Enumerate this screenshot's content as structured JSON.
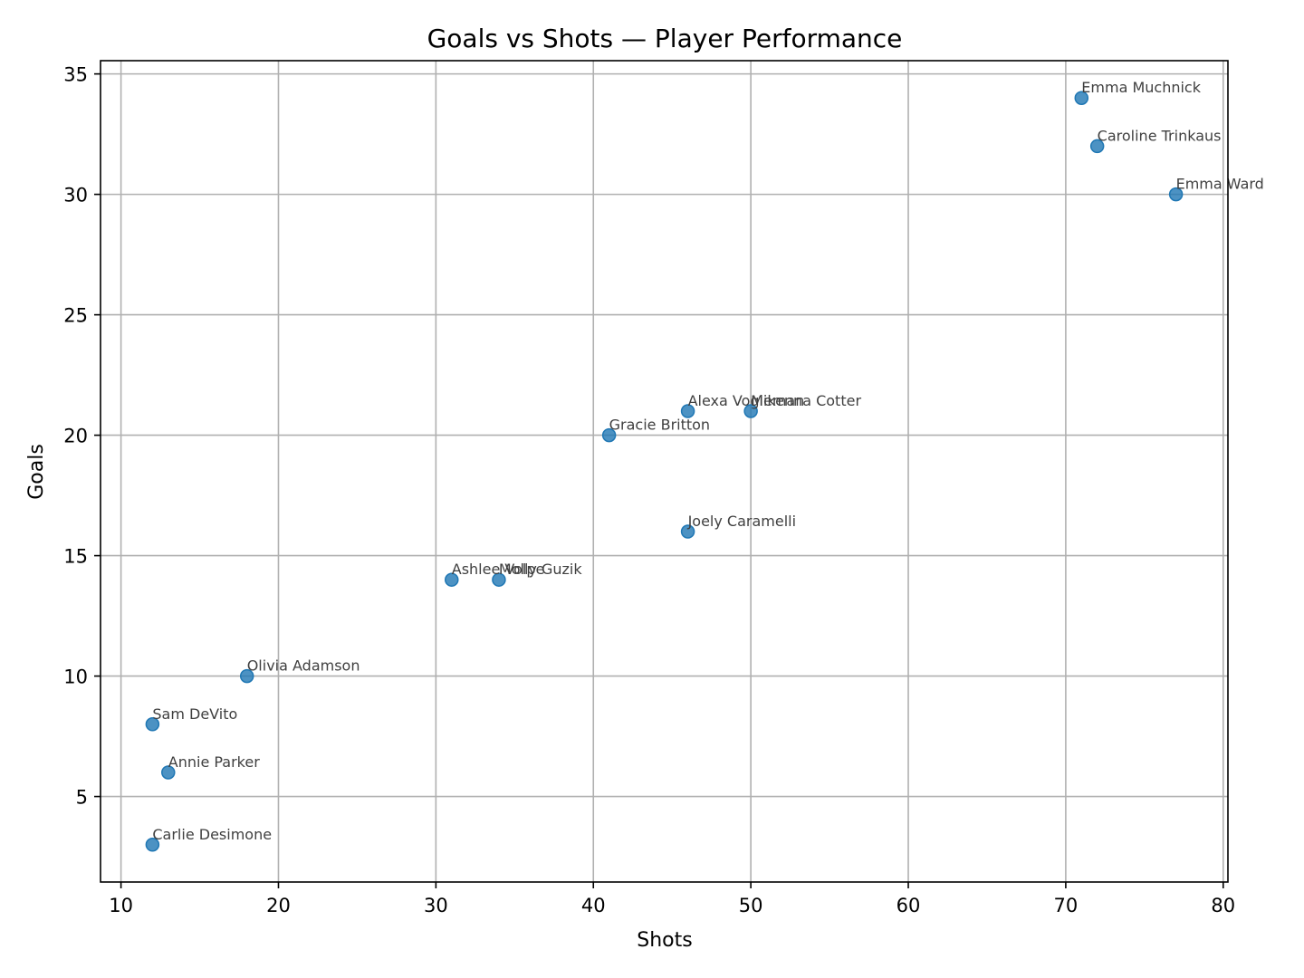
{
  "chart_data": {
    "type": "scatter",
    "title": "Goals vs Shots — Player Performance",
    "xlabel": "Shots",
    "ylabel": "Goals",
    "xlim": [
      8.7,
      80.3
    ],
    "ylim": [
      1.45,
      35.55
    ],
    "xticks": [
      10,
      20,
      30,
      40,
      50,
      60,
      70,
      80
    ],
    "yticks": [
      5,
      10,
      15,
      20,
      25,
      30,
      35
    ],
    "grid": true,
    "marker_color": "#1f77b4",
    "label_color": "#404040",
    "points": [
      {
        "x": 71,
        "y": 34,
        "label": "Emma Muchnick"
      },
      {
        "x": 72,
        "y": 32,
        "label": "Caroline Trinkaus"
      },
      {
        "x": 77,
        "y": 30,
        "label": "Emma Ward"
      },
      {
        "x": 46,
        "y": 21,
        "label": "Alexa Vogleman"
      },
      {
        "x": 50,
        "y": 21,
        "label": "Mikenna Cotter"
      },
      {
        "x": 41,
        "y": 20,
        "label": "Gracie Britton"
      },
      {
        "x": 46,
        "y": 16,
        "label": "Joely Caramelli"
      },
      {
        "x": 31,
        "y": 14,
        "label": "Ashlee Volpe"
      },
      {
        "x": 34,
        "y": 14,
        "label": "Molly Guzik"
      },
      {
        "x": 18,
        "y": 10,
        "label": "Olivia Adamson"
      },
      {
        "x": 12,
        "y": 8,
        "label": "Sam DeVito"
      },
      {
        "x": 13,
        "y": 6,
        "label": "Annie Parker"
      },
      {
        "x": 12,
        "y": 3,
        "label": "Carlie Desimone"
      }
    ]
  }
}
